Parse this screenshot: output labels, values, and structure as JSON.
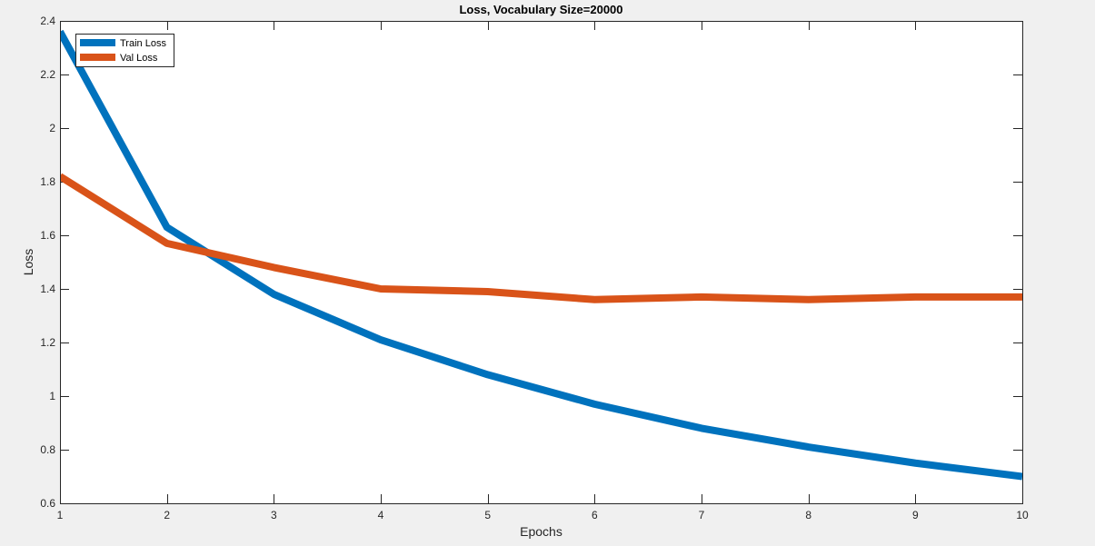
{
  "chart_data": {
    "type": "line",
    "title": "Loss, Vocabulary Size=20000",
    "xlabel": "Epochs",
    "ylabel": "Loss",
    "x": [
      1,
      2,
      3,
      4,
      5,
      6,
      7,
      8,
      9,
      10
    ],
    "xlim": [
      1,
      10
    ],
    "ylim": [
      0.6,
      2.4
    ],
    "xticks": [
      "1",
      "2",
      "3",
      "4",
      "5",
      "6",
      "7",
      "8",
      "9",
      "10"
    ],
    "yticks": [
      "0.6",
      "0.8",
      "1",
      "1.2",
      "1.4",
      "1.6",
      "1.8",
      "2",
      "2.2",
      "2.4"
    ],
    "grid": false,
    "legend_position": "top-left",
    "series": [
      {
        "name": "Train Loss",
        "color": "#0072bd",
        "values": [
          2.36,
          1.63,
          1.38,
          1.21,
          1.08,
          0.97,
          0.88,
          0.81,
          0.75,
          0.7
        ]
      },
      {
        "name": "Val Loss",
        "color": "#d95319",
        "values": [
          1.82,
          1.57,
          1.48,
          1.4,
          1.39,
          1.36,
          1.37,
          1.36,
          1.37,
          1.37
        ]
      }
    ]
  }
}
